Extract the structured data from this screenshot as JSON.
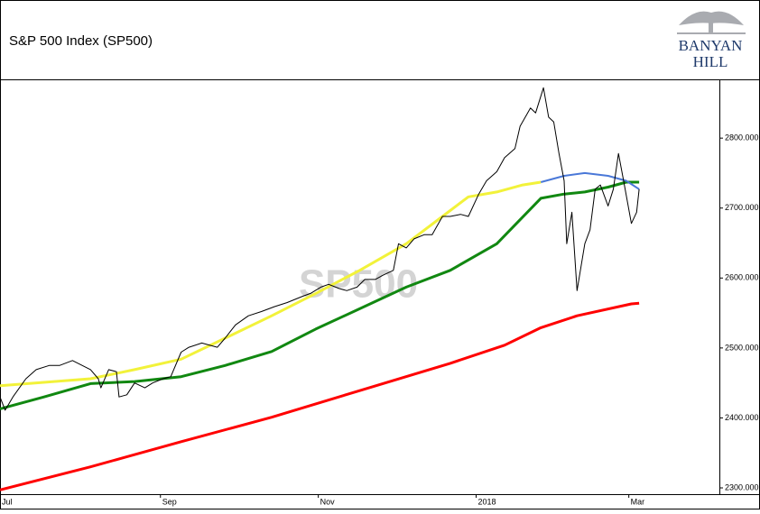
{
  "chart_data": {
    "type": "line",
    "title": "S&P 500 Index  (SP500)",
    "watermark": "SP500",
    "xlim": [
      0,
      278
    ],
    "xticks": [
      {
        "value": 0,
        "label": "Jul"
      },
      {
        "value": 62,
        "label": "Sep"
      },
      {
        "value": 123,
        "label": "Nov"
      },
      {
        "value": 184,
        "label": "2018"
      },
      {
        "value": 243,
        "label": "Mar"
      }
    ],
    "ylim": [
      2291,
      2884
    ],
    "yticks": [
      {
        "value": 2300,
        "label": "2300.000"
      },
      {
        "value": 2400,
        "label": "2400.000"
      },
      {
        "value": 2500,
        "label": "2500.000"
      },
      {
        "value": 2600,
        "label": "2600.000"
      },
      {
        "value": 2700,
        "label": "2700.000"
      },
      {
        "value": 2800,
        "label": "2800.000"
      }
    ],
    "series": [
      {
        "color": "#ff0000",
        "width": 3,
        "x": [
          0,
          35,
          70,
          105,
          139,
          174,
          195,
          209,
          223,
          244,
          247
        ],
        "values": [
          2297,
          2330,
          2366,
          2401,
          2439,
          2478,
          2504,
          2529,
          2546,
          2563,
          2564
        ]
      },
      {
        "color": "#118811",
        "width": 3,
        "x": [
          0,
          17,
          35,
          52,
          70,
          87,
          105,
          122,
          139,
          157,
          174,
          192,
          209,
          218,
          226,
          235,
          242,
          247
        ],
        "values": [
          2413,
          2430,
          2449,
          2452,
          2459,
          2475,
          2495,
          2527,
          2556,
          2587,
          2611,
          2649,
          2714,
          2720,
          2723,
          2730,
          2737,
          2737
        ]
      },
      {
        "color": "#f2f23a",
        "width": 3,
        "x": [
          0,
          35,
          52,
          70,
          87,
          105,
          122,
          139,
          157,
          171,
          181,
          192,
          202,
          209
        ],
        "values": [
          2446,
          2456,
          2469,
          2484,
          2514,
          2546,
          2578,
          2611,
          2649,
          2688,
          2716,
          2723,
          2733,
          2737
        ]
      },
      {
        "color": "#4a78d8",
        "width": 2,
        "x": [
          209,
          218,
          226,
          235,
          242,
          247
        ],
        "values": [
          2737,
          2746,
          2750,
          2746,
          2739,
          2727
        ]
      },
      {
        "color": "#000000",
        "width": 1,
        "x": [
          0,
          2,
          5,
          10,
          14,
          19,
          23,
          28,
          35,
          38,
          39,
          42,
          45,
          46,
          49,
          52,
          56,
          59,
          63,
          66,
          70,
          73,
          78,
          84,
          87,
          91,
          96,
          101,
          106,
          111,
          117,
          120,
          124,
          127,
          131,
          134,
          138,
          141,
          145,
          148,
          152,
          154,
          157,
          160,
          164,
          167,
          171,
          174,
          178,
          181,
          185,
          188,
          192,
          195,
          199,
          201,
          205,
          207,
          210,
          212,
          214,
          216,
          218,
          219,
          221,
          223,
          226,
          228,
          230,
          232,
          235,
          237,
          239,
          241,
          244,
          246,
          247
        ],
        "values": [
          2430,
          2411,
          2430,
          2456,
          2469,
          2475,
          2475,
          2482,
          2469,
          2456,
          2443,
          2469,
          2466,
          2430,
          2433,
          2450,
          2443,
          2450,
          2456,
          2459,
          2494,
          2501,
          2507,
          2501,
          2514,
          2533,
          2546,
          2552,
          2559,
          2565,
          2574,
          2578,
          2587,
          2591,
          2585,
          2582,
          2587,
          2598,
          2598,
          2604,
          2611,
          2649,
          2643,
          2656,
          2662,
          2662,
          2688,
          2688,
          2691,
          2688,
          2720,
          2739,
          2752,
          2772,
          2785,
          2817,
          2843,
          2836,
          2872,
          2830,
          2823,
          2778,
          2739,
          2649,
          2694,
          2582,
          2649,
          2669,
          2727,
          2733,
          2703,
          2727,
          2778,
          2739,
          2678,
          2694,
          2727
        ]
      }
    ]
  },
  "logo": {
    "line1": "BANYAN",
    "line2": "HILL"
  }
}
